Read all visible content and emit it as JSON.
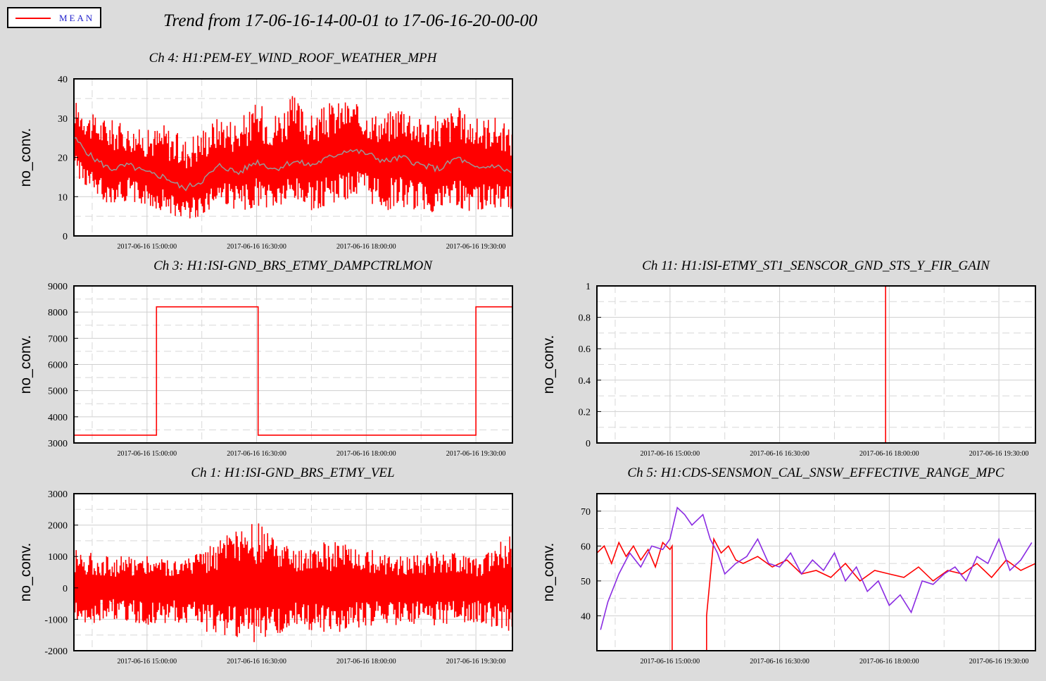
{
  "legend": {
    "label": "MEAN",
    "color": "#ff0000"
  },
  "title": "Trend from 17-06-16-14-00-01 to 17-06-16-20-00-00",
  "colors": {
    "series": "#ff0000",
    "mean": "#999999",
    "alt": "#8a2be2"
  },
  "chart_data": [
    {
      "id": "ch4",
      "type": "line",
      "title": "Ch 4: H1:PEM-EY_WIND_ROOF_WEATHER_MPH",
      "ylabel": "no_conv.",
      "ylim": [
        0,
        40
      ],
      "yticks": [
        "0",
        "10",
        "20",
        "30",
        "40"
      ],
      "xticks": [
        "2017-06-16 15:00:00",
        "2017-06-16 16:30:00",
        "2017-06-16 18:00:00",
        "2017-06-16 19:30:00"
      ],
      "grid": true,
      "series": [
        {
          "name": "MEAN",
          "color": "#ff0000",
          "style": "band",
          "x": [
            14.0,
            14.25,
            14.5,
            14.75,
            15.0,
            15.25,
            15.5,
            15.75,
            16.0,
            16.25,
            16.5,
            16.75,
            17.0,
            17.25,
            17.5,
            17.75,
            18.0,
            18.25,
            18.5,
            18.75,
            19.0,
            19.25,
            19.5,
            19.75,
            20.0
          ],
          "values": [
            25,
            20,
            17,
            18,
            16,
            15,
            12,
            14,
            18,
            16,
            19,
            17,
            19,
            18,
            20,
            22,
            21,
            19,
            20,
            18,
            17,
            20,
            17,
            18,
            16
          ],
          "upper": [
            35,
            31,
            30,
            28,
            27,
            29,
            25,
            28,
            31,
            30,
            34,
            32,
            36,
            31,
            34,
            35,
            32,
            31,
            35,
            30,
            31,
            33,
            30,
            31,
            27
          ],
          "lower": [
            16,
            10,
            8,
            9,
            7,
            6,
            4,
            5,
            8,
            6,
            7,
            6,
            8,
            6,
            8,
            9,
            8,
            6,
            7,
            6,
            5,
            7,
            6,
            7,
            6
          ]
        }
      ]
    },
    {
      "id": "ch3",
      "type": "line",
      "title": "Ch 3: H1:ISI-GND_BRS_ETMY_DAMPCTRLMON",
      "ylabel": "no_conv.",
      "ylim": [
        3000,
        9000
      ],
      "yticks": [
        "3000",
        "4000",
        "5000",
        "6000",
        "7000",
        "8000",
        "9000"
      ],
      "xticks": [
        "2017-06-16 15:00:00",
        "2017-06-16 16:30:00",
        "2017-06-16 18:00:00",
        "2017-06-16 19:30:00"
      ],
      "grid": true,
      "series": [
        {
          "name": "MEAN",
          "color": "#ff0000",
          "style": "line",
          "x": [
            14.0,
            15.13,
            15.13,
            16.52,
            16.52,
            19.5,
            19.5,
            20.0
          ],
          "values": [
            3300,
            3300,
            8200,
            8200,
            3300,
            3300,
            8200,
            8200
          ]
        }
      ]
    },
    {
      "id": "ch11",
      "type": "line",
      "title": "Ch 11: H1:ISI-ETMY_ST1_SENSCOR_GND_STS_Y_FIR_GAIN",
      "ylabel": "no_conv.",
      "ylim": [
        0,
        1
      ],
      "yticks": [
        "0",
        "0.2",
        "0.4",
        "0.6",
        "0.8",
        "1"
      ],
      "xticks": [
        "2017-06-16 15:00:00",
        "2017-06-16 16:30:00",
        "2017-06-16 18:00:00",
        "2017-06-16 19:30:00"
      ],
      "grid": true,
      "series": [
        {
          "name": "MEAN",
          "color": "#ff0000",
          "style": "line",
          "x": [
            14.2,
            17.95,
            17.95,
            19.8
          ],
          "values": [
            1,
            1,
            0,
            0
          ]
        }
      ]
    },
    {
      "id": "ch1",
      "type": "line",
      "title": "Ch 1: H1:ISI-GND_BRS_ETMY_VEL",
      "ylabel": "no_conv.",
      "ylim": [
        -2000,
        3000
      ],
      "yticks": [
        "-2000",
        "-1000",
        "0",
        "1000",
        "2000",
        "3000"
      ],
      "xticks": [
        "2017-06-16 15:00:00",
        "2017-06-16 16:30:00",
        "2017-06-16 18:00:00",
        "2017-06-16 19:30:00"
      ],
      "grid": true,
      "series": [
        {
          "name": "MEAN",
          "color": "#ff0000",
          "style": "band",
          "x": [
            14.0,
            14.5,
            15.0,
            15.5,
            16.0,
            16.5,
            17.0,
            17.5,
            18.0,
            18.5,
            19.0,
            19.5,
            20.0
          ],
          "values": [
            0,
            0,
            0,
            0,
            0,
            0,
            0,
            0,
            0,
            0,
            0,
            0,
            0
          ],
          "upper": [
            1300,
            1000,
            1100,
            900,
            1600,
            2100,
            1200,
            1500,
            1300,
            1100,
            1200,
            1000,
            1700
          ],
          "lower": [
            -1300,
            -1000,
            -1200,
            -1100,
            -1600,
            -1800,
            -1300,
            -1500,
            -1200,
            -1200,
            -1200,
            -1100,
            -1500
          ]
        }
      ]
    },
    {
      "id": "ch5",
      "type": "line",
      "title": "Ch 5: H1:CDS-SENSMON_CAL_SNSW_EFFECTIVE_RANGE_MPC",
      "ylabel": "no_conv.",
      "ylim": [
        30,
        75
      ],
      "yticks": [
        "40",
        "50",
        "60",
        "70"
      ],
      "xticks": [
        "2017-06-16 15:00:00",
        "2017-06-16 16:30:00",
        "2017-06-16 18:00:00",
        "2017-06-16 19:30:00"
      ],
      "grid": true,
      "series": [
        {
          "name": "MEAN",
          "color": "#ff0000",
          "style": "line",
          "x": [
            14.0,
            14.1,
            14.2,
            14.3,
            14.4,
            14.5,
            14.6,
            14.7,
            14.8,
            14.9,
            15.0,
            15.03,
            15.03,
            15.5,
            15.5,
            15.6,
            15.7,
            15.8,
            15.9,
            16.0,
            16.2,
            16.4,
            16.6,
            16.8,
            17.0,
            17.2,
            17.4,
            17.6,
            17.8,
            18.0,
            18.2,
            18.4,
            18.6,
            18.8,
            19.0,
            19.2,
            19.4,
            19.6,
            19.8,
            20.0
          ],
          "values": [
            58,
            60,
            55,
            61,
            57,
            60,
            56,
            59,
            54,
            61,
            59,
            60,
            30,
            30,
            40,
            62,
            58,
            60,
            56,
            55,
            57,
            54,
            56,
            52,
            53,
            51,
            55,
            50,
            53,
            52,
            51,
            54,
            50,
            53,
            52,
            55,
            51,
            56,
            53,
            55
          ]
        },
        {
          "name": "",
          "color": "#8a2be2",
          "style": "line",
          "x": [
            14.05,
            14.15,
            14.3,
            14.45,
            14.6,
            14.75,
            14.9,
            15.0,
            15.1,
            15.2,
            15.3,
            15.45,
            15.55,
            15.65,
            15.75,
            15.9,
            16.05,
            16.2,
            16.35,
            16.5,
            16.65,
            16.8,
            16.95,
            17.1,
            17.25,
            17.4,
            17.55,
            17.7,
            17.85,
            18.0,
            18.15,
            18.3,
            18.45,
            18.6,
            18.75,
            18.9,
            19.05,
            19.2,
            19.35,
            19.5,
            19.65,
            19.8,
            19.95
          ],
          "values": [
            36,
            44,
            52,
            58,
            54,
            60,
            59,
            62,
            71,
            69,
            66,
            69,
            62,
            58,
            52,
            55,
            57,
            62,
            55,
            54,
            58,
            52,
            56,
            53,
            58,
            50,
            54,
            47,
            50,
            43,
            46,
            41,
            50,
            49,
            52,
            54,
            50,
            57,
            55,
            62,
            53,
            56,
            61
          ]
        }
      ]
    }
  ]
}
